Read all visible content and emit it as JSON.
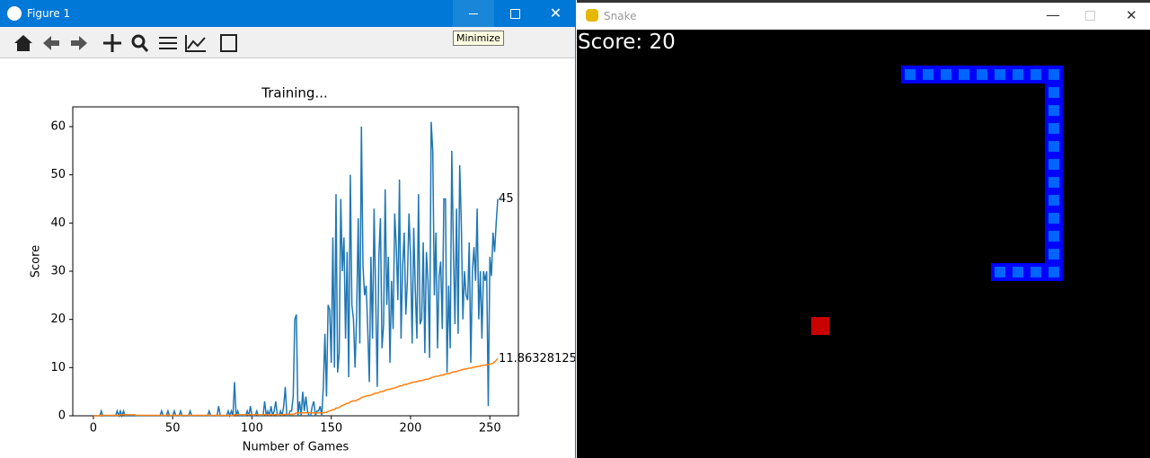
{
  "windows": {
    "figure_title": "Figure 1",
    "tooltip": "Minimize",
    "snake_title": "Snake",
    "score_text": "Score: 20"
  },
  "chart_data": {
    "type": "line",
    "title": "Training...",
    "x_label": "Number of Games",
    "y_label": "Score",
    "xlim": [
      -13,
      268
    ],
    "ylim": [
      0,
      64.1
    ],
    "xticks": [
      0,
      50,
      100,
      150,
      200,
      250
    ],
    "yticks": [
      0,
      10,
      20,
      30,
      40,
      50,
      60
    ],
    "x": [
      0,
      1,
      2,
      3,
      4,
      5,
      6,
      7,
      8,
      9,
      10,
      11,
      12,
      13,
      14,
      15,
      16,
      17,
      18,
      19,
      20,
      21,
      22,
      23,
      24,
      25,
      26,
      27,
      28,
      29,
      30,
      31,
      32,
      33,
      34,
      35,
      36,
      37,
      38,
      39,
      40,
      41,
      42,
      43,
      44,
      45,
      46,
      47,
      48,
      49,
      50,
      51,
      52,
      53,
      54,
      55,
      56,
      57,
      58,
      59,
      60,
      61,
      62,
      63,
      64,
      65,
      66,
      67,
      68,
      69,
      70,
      71,
      72,
      73,
      74,
      75,
      76,
      77,
      78,
      79,
      80,
      81,
      82,
      83,
      84,
      85,
      86,
      87,
      88,
      89,
      90,
      91,
      92,
      93,
      94,
      95,
      96,
      97,
      98,
      99,
      100,
      101,
      102,
      103,
      104,
      105,
      106,
      107,
      108,
      109,
      110,
      111,
      112,
      113,
      114,
      115,
      116,
      117,
      118,
      119,
      120,
      121,
      122,
      123,
      124,
      125,
      126,
      127,
      128,
      129,
      130,
      131,
      132,
      133,
      134,
      135,
      136,
      137,
      138,
      139,
      140,
      141,
      142,
      143,
      144,
      145,
      146,
      147,
      148,
      149,
      150,
      151,
      152,
      153,
      154,
      155,
      156,
      157,
      158,
      159,
      160,
      161,
      162,
      163,
      164,
      165,
      166,
      167,
      168,
      169,
      170,
      171,
      172,
      173,
      174,
      175,
      176,
      177,
      178,
      179,
      180,
      181,
      182,
      183,
      184,
      185,
      186,
      187,
      188,
      189,
      190,
      191,
      192,
      193,
      194,
      195,
      196,
      197,
      198,
      199,
      200,
      201,
      202,
      203,
      204,
      205,
      206,
      207,
      208,
      209,
      210,
      211,
      212,
      213,
      214,
      215,
      216,
      217,
      218,
      219,
      220,
      221,
      222,
      223,
      224,
      225,
      226,
      227,
      228,
      229,
      230,
      231,
      232,
      233,
      234,
      235,
      236,
      237,
      238,
      239,
      240,
      241,
      242,
      243,
      244,
      245,
      246,
      247,
      248,
      249,
      250,
      251,
      252,
      253,
      254,
      255
    ],
    "series": [
      {
        "color": "#1f77b4",
        "values": [
          0,
          0,
          0,
          0,
          0,
          1,
          0,
          0,
          0,
          0,
          0,
          0,
          0,
          0,
          0,
          1,
          0,
          1,
          0,
          1,
          0,
          0,
          0,
          0,
          0,
          0,
          0,
          0,
          0,
          0,
          0,
          0,
          0,
          0,
          0,
          0,
          0,
          0,
          0,
          0,
          0,
          0,
          0,
          1,
          0,
          0,
          0,
          1,
          0,
          0,
          0,
          1,
          0,
          0,
          0,
          1,
          0,
          0,
          0,
          0,
          0,
          1,
          0,
          0,
          0,
          0,
          0,
          0,
          0,
          0,
          0,
          0,
          0,
          1,
          0,
          0,
          0,
          0,
          0,
          2,
          0,
          0,
          0,
          0,
          0,
          1,
          0,
          1,
          0,
          7,
          0,
          1,
          0,
          0,
          0,
          0,
          0,
          1,
          0,
          2,
          0,
          0,
          0,
          1,
          0,
          0,
          0,
          0,
          3,
          0,
          1,
          0,
          2,
          0,
          1,
          3,
          0,
          0,
          1,
          0,
          2,
          6,
          0,
          0,
          1,
          1,
          4,
          20,
          21,
          0,
          3,
          0,
          5,
          1,
          4,
          1,
          0,
          0,
          2,
          3,
          0,
          1,
          1,
          2,
          0,
          6,
          17,
          4,
          23,
          22,
          11,
          37,
          10,
          46,
          9,
          13,
          45,
          30,
          37,
          16,
          34,
          8,
          50,
          23,
          20,
          10,
          21,
          41,
          15,
          60,
          31,
          25,
          27,
          18,
          7,
          33,
          16,
          43,
          25,
          6,
          33,
          41,
          14,
          19,
          47,
          23,
          33,
          11,
          28,
          18,
          42,
          35,
          24,
          49,
          16,
          31,
          38,
          21,
          28,
          42,
          33,
          15,
          39,
          26,
          16,
          46,
          19,
          20,
          36,
          13,
          34,
          28,
          12,
          61,
          55,
          25,
          38,
          14,
          29,
          32,
          18,
          45,
          45,
          9,
          27,
          14,
          55,
          35,
          19,
          43,
          17,
          52,
          40,
          20,
          30,
          25,
          24,
          36,
          11,
          30,
          35,
          28,
          43,
          20,
          30,
          16,
          30,
          28,
          30,
          2,
          33,
          29,
          38,
          34,
          40,
          45
        ]
      },
      {
        "color": "#ff7f0e",
        "values": [
          0,
          0,
          0,
          0,
          0,
          0.2,
          0.1,
          0.1,
          0.1,
          0.1,
          0.1,
          0.1,
          0.1,
          0.1,
          0.1,
          0.1,
          0.1,
          0.2,
          0.2,
          0.2,
          0.2,
          0.2,
          0.2,
          0.2,
          0.2,
          0.2,
          0.2,
          0.1,
          0.1,
          0.1,
          0.1,
          0.1,
          0.1,
          0.1,
          0.1,
          0.1,
          0.1,
          0.1,
          0.1,
          0.1,
          0.1,
          0.1,
          0.1,
          0.1,
          0.1,
          0.1,
          0.1,
          0.2,
          0.1,
          0.1,
          0.1,
          0.1,
          0.1,
          0.1,
          0.1,
          0.1,
          0.1,
          0.1,
          0.1,
          0.1,
          0.1,
          0.1,
          0.1,
          0.1,
          0.1,
          0.1,
          0.1,
          0.1,
          0.1,
          0.1,
          0.1,
          0.1,
          0.1,
          0.1,
          0.1,
          0.1,
          0.1,
          0.1,
          0.1,
          0.1,
          0.1,
          0.1,
          0.1,
          0.1,
          0.1,
          0.1,
          0.1,
          0.1,
          0.1,
          0.2,
          0.2,
          0.2,
          0.2,
          0.2,
          0.2,
          0.2,
          0.2,
          0.2,
          0.2,
          0.2,
          0.2,
          0.2,
          0.2,
          0.2,
          0.2,
          0.2,
          0.2,
          0.2,
          0.2,
          0.2,
          0.2,
          0.2,
          0.2,
          0.2,
          0.2,
          0.2,
          0.2,
          0.2,
          0.2,
          0.2,
          0.2,
          0.3,
          0.3,
          0.3,
          0.3,
          0.3,
          0.3,
          0.4,
          0.6,
          0.6,
          0.6,
          0.6,
          0.6,
          0.6,
          0.6,
          0.6,
          0.6,
          0.6,
          0.6,
          0.6,
          0.6,
          0.6,
          0.6,
          0.6,
          0.6,
          0.6,
          0.7,
          0.7,
          0.9,
          1.0,
          1.1,
          1.3,
          1.3,
          1.6,
          1.6,
          1.7,
          2.0,
          2.1,
          2.3,
          2.4,
          2.6,
          2.6,
          2.9,
          3.0,
          3.1,
          3.1,
          3.2,
          3.4,
          3.5,
          3.8,
          3.9,
          4.0,
          4.1,
          4.2,
          4.2,
          4.3,
          4.4,
          4.6,
          4.7,
          4.7,
          4.8,
          5.0,
          5.0,
          5.1,
          5.3,
          5.4,
          5.5,
          5.5,
          5.6,
          5.7,
          5.8,
          5.9,
          6.0,
          6.2,
          6.2,
          6.3,
          6.5,
          6.5,
          6.6,
          6.7,
          6.8,
          6.9,
          7.0,
          7.0,
          7.1,
          7.2,
          7.3,
          7.3,
          7.4,
          7.5,
          7.6,
          7.6,
          7.7,
          7.9,
          8.0,
          8.1,
          8.2,
          8.2,
          8.3,
          8.4,
          8.4,
          8.5,
          8.7,
          8.7,
          8.8,
          8.8,
          9.0,
          9.1,
          9.1,
          9.2,
          9.3,
          9.4,
          9.5,
          9.6,
          9.7,
          9.7,
          9.8,
          9.9,
          9.9,
          10.0,
          10.1,
          10.1,
          10.2,
          10.3,
          10.3,
          10.4,
          10.5,
          10.5,
          10.6,
          10.6,
          10.7,
          10.8,
          10.9,
          11.2,
          11.5,
          11.86328125
        ]
      }
    ]
  }
}
